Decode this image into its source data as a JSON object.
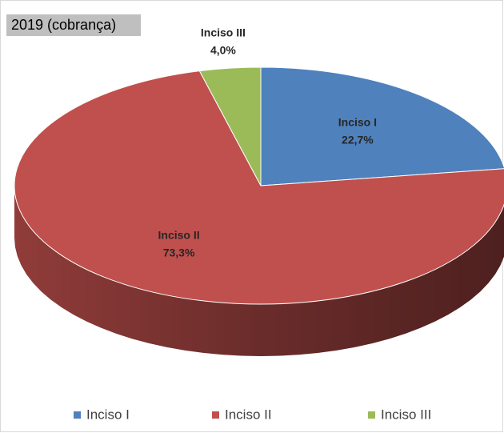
{
  "chart_data": {
    "type": "pie",
    "title": "2019 (cobrança)",
    "categories": [
      "Inciso I",
      "Inciso II",
      "Inciso III"
    ],
    "values": [
      22.7,
      73.3,
      4.0
    ],
    "value_labels": [
      "22,7%",
      "73,3%",
      "4,0%"
    ],
    "colors": [
      "#4f81bd",
      "#c0504d",
      "#9bbb59"
    ],
    "legend": "bottom"
  }
}
